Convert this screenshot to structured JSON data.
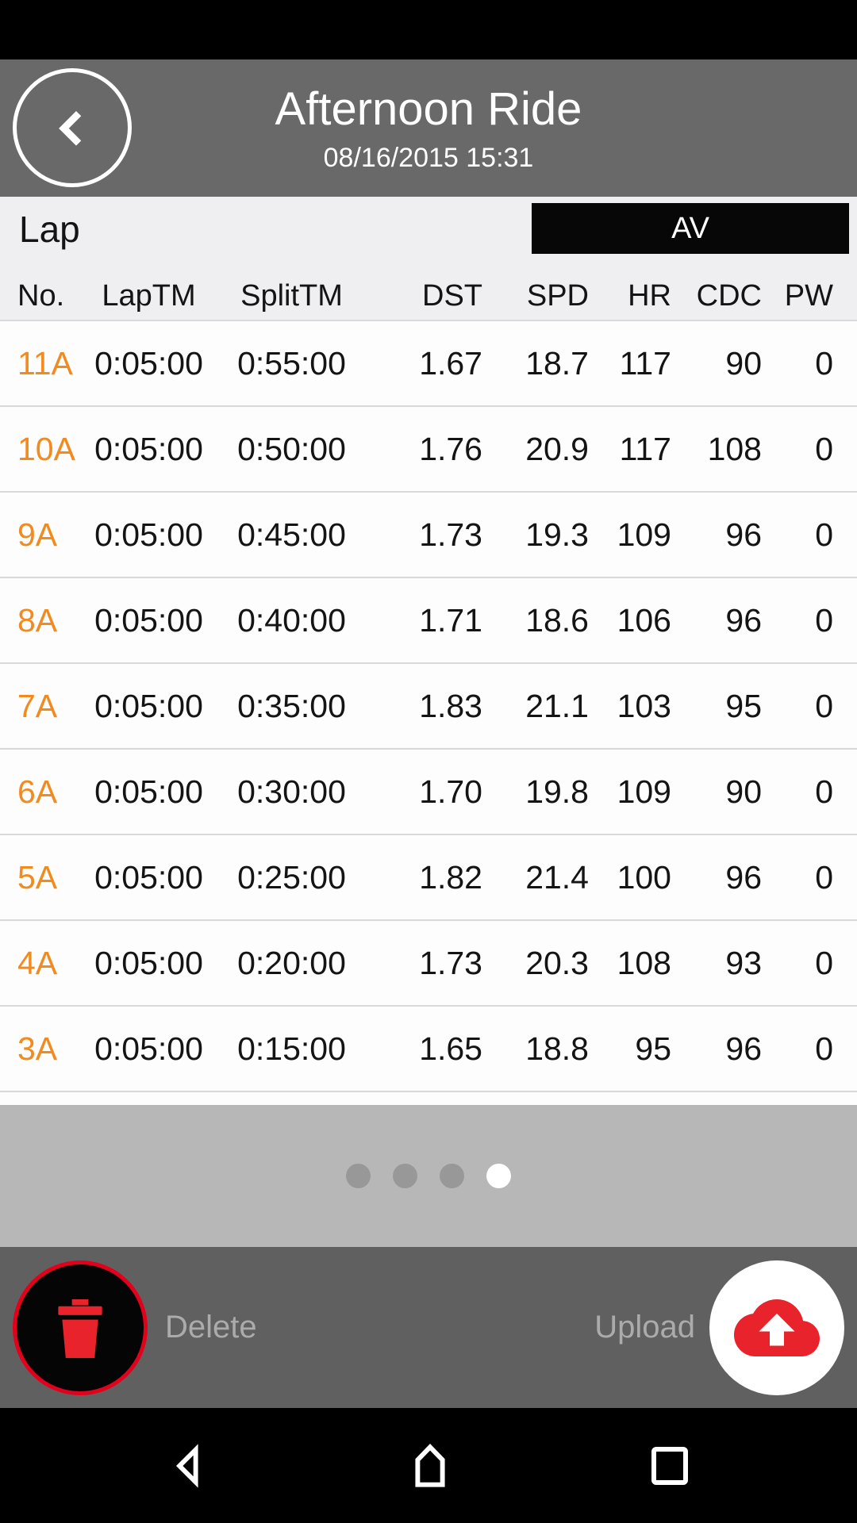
{
  "header": {
    "title": "Afternoon Ride",
    "subtitle": "08/16/2015 15:31",
    "back_icon": "chevron-left-icon"
  },
  "table": {
    "section_label": "Lap",
    "av_badge_label": "AV",
    "columns": [
      "No.",
      "LapTM",
      "SplitTM",
      "DST",
      "SPD",
      "HR",
      "CDC",
      "PW"
    ],
    "rows": [
      [
        "11A",
        "0:05:00",
        "0:55:00",
        "1.67",
        "18.7",
        "117",
        "90",
        "0"
      ],
      [
        "10A",
        "0:05:00",
        "0:50:00",
        "1.76",
        "20.9",
        "117",
        "108",
        "0"
      ],
      [
        "9A",
        "0:05:00",
        "0:45:00",
        "1.73",
        "19.3",
        "109",
        "96",
        "0"
      ],
      [
        "8A",
        "0:05:00",
        "0:40:00",
        "1.71",
        "18.6",
        "106",
        "96",
        "0"
      ],
      [
        "7A",
        "0:05:00",
        "0:35:00",
        "1.83",
        "21.1",
        "103",
        "95",
        "0"
      ],
      [
        "6A",
        "0:05:00",
        "0:30:00",
        "1.70",
        "19.8",
        "109",
        "90",
        "0"
      ],
      [
        "5A",
        "0:05:00",
        "0:25:00",
        "1.82",
        "21.4",
        "100",
        "96",
        "0"
      ],
      [
        "4A",
        "0:05:00",
        "0:20:00",
        "1.73",
        "20.3",
        "108",
        "93",
        "0"
      ],
      [
        "3A",
        "0:05:00",
        "0:15:00",
        "1.65",
        "18.8",
        "95",
        "96",
        "0"
      ]
    ]
  },
  "pager": {
    "dot_count": 4,
    "active_index": 3
  },
  "toolbar": {
    "delete_label": "Delete",
    "upload_label": "Upload",
    "delete_icon": "trash-icon",
    "upload_icon": "cloud-upload-icon"
  },
  "nav_bar": {
    "icons": [
      "back",
      "home",
      "recents"
    ]
  },
  "colors": {
    "accent_orange": "#F28A1E",
    "accent_red": "#E8232B",
    "header_gray": "#696969",
    "toolbar_gray": "#606060",
    "pager_gray": "#B7B7B7",
    "badge_black": "#070707"
  }
}
